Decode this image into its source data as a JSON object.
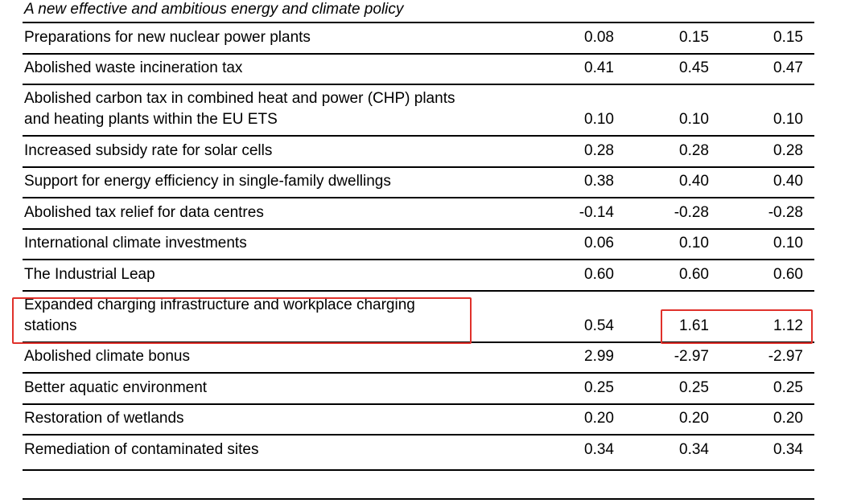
{
  "section": {
    "heading": "A new effective and ambitious energy and climate policy"
  },
  "rows": [
    {
      "label": "Preparations for new nuclear power plants",
      "v1": "0.08",
      "v2": "0.15",
      "v3": "0.15"
    },
    {
      "label": "Abolished waste incineration tax",
      "v1": "0.41",
      "v2": "0.45",
      "v3": "0.47"
    },
    {
      "label_line1": "Abolished carbon tax in combined heat and power (CHP) plants",
      "label_line2": "and heating plants within the EU ETS",
      "v1": "0.10",
      "v2": "0.10",
      "v3": "0.10"
    },
    {
      "label": "Increased subsidy rate for solar cells",
      "v1": "0.28",
      "v2": "0.28",
      "v3": "0.28"
    },
    {
      "label": "Support for energy efficiency in single-family dwellings",
      "v1": "0.38",
      "v2": "0.40",
      "v3": "0.40"
    },
    {
      "label": "Abolished tax relief for data centres",
      "v1": "-0.14",
      "v2": "-0.28",
      "v3": "-0.28"
    },
    {
      "label": "International climate investments",
      "v1": "0.06",
      "v2": "0.10",
      "v3": "0.10"
    },
    {
      "label": "The Industrial Leap",
      "v1": "0.60",
      "v2": "0.60",
      "v3": "0.60"
    },
    {
      "label_line1": "Expanded charging infrastructure and workplace charging",
      "label_line2": "stations",
      "v1": "0.54",
      "v2": "1.61",
      "v3": "1.12"
    },
    {
      "label": "Abolished climate bonus",
      "v1": "2.99",
      "v2": "-2.97",
      "v3": "-2.97"
    },
    {
      "label": "Better aquatic environment",
      "v1": "0.25",
      "v2": "0.25",
      "v3": "0.25"
    },
    {
      "label": "Restoration of wetlands",
      "v1": "0.20",
      "v2": "0.20",
      "v3": "0.20"
    },
    {
      "label": "Remediation of contaminated sites",
      "v1": "0.34",
      "v2": "0.34",
      "v3": "0.34"
    }
  ],
  "highlight_color": "#e0312b"
}
